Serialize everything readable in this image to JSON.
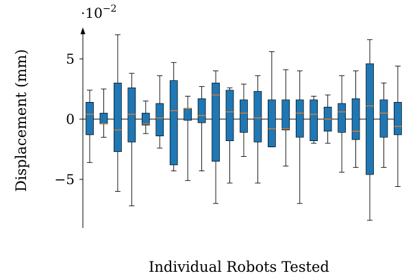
{
  "chart_data": {
    "type": "box",
    "title": "",
    "xlabel": "Individual Robots Tested",
    "ylabel": "Displacement (mm)",
    "y_scale_factor": "·10",
    "y_scale_exponent": "−2",
    "ylim": [
      -9,
      7.5
    ],
    "yticks": [
      {
        "value": 5,
        "label": "5"
      },
      {
        "value": 0,
        "label": "0"
      },
      {
        "value": -5,
        "label": "−5"
      }
    ],
    "grid": false,
    "zero_line": true,
    "box_color": "#1f77b4",
    "median_color": "#ff7f0e",
    "boxes": [
      {
        "whisker_low": -3.6,
        "q1": -1.3,
        "median": 0.4,
        "q3": 1.4,
        "whisker_high": 2.4
      },
      {
        "whisker_low": -1.5,
        "q1": -0.4,
        "median": -0.4,
        "q3": 0.5,
        "whisker_high": 2.5
      },
      {
        "whisker_low": -6.0,
        "q1": -2.7,
        "median": -0.9,
        "q3": 3.0,
        "whisker_high": 7.0
      },
      {
        "whisker_low": -7.2,
        "q1": -1.9,
        "median": 0.4,
        "q3": 2.6,
        "whisker_high": 3.8
      },
      {
        "whisker_low": -1.2,
        "q1": -0.5,
        "median": -0.4,
        "q3": 0.5,
        "whisker_high": 1.5
      },
      {
        "whisker_low": -2.4,
        "q1": -1.4,
        "median": 0.1,
        "q3": 1.3,
        "whisker_high": 3.6
      },
      {
        "whisker_low": -4.3,
        "q1": -3.8,
        "median": 0.7,
        "q3": 3.2,
        "whisker_high": 4.7
      },
      {
        "whisker_low": -5.1,
        "q1": -0.1,
        "median": 0.9,
        "q3": 0.9,
        "whisker_high": 1.9
      },
      {
        "whisker_low": -4.3,
        "q1": -0.3,
        "median": 0.3,
        "q3": 1.7,
        "whisker_high": 2.7
      },
      {
        "whisker_low": -7.0,
        "q1": -3.5,
        "median": 2.0,
        "q3": 3.0,
        "whisker_high": 4.0
      },
      {
        "whisker_low": -5.3,
        "q1": -1.8,
        "median": 0.6,
        "q3": 2.4,
        "whisker_high": 2.6
      },
      {
        "whisker_low": -3.1,
        "q1": -1.1,
        "median": 0.5,
        "q3": 1.6,
        "whisker_high": 2.9
      },
      {
        "whisker_low": -5.3,
        "q1": -1.9,
        "median": 0.1,
        "q3": 2.3,
        "whisker_high": 3.6
      },
      {
        "whisker_low": -2.3,
        "q1": -2.3,
        "median": -0.8,
        "q3": 1.6,
        "whisker_high": 5.6
      },
      {
        "whisker_low": -3.9,
        "q1": -0.9,
        "median": -0.8,
        "q3": 1.6,
        "whisker_high": 4.1
      },
      {
        "whisker_low": -7.0,
        "q1": -1.5,
        "median": 0.5,
        "q3": 1.6,
        "whisker_high": 4.0
      },
      {
        "whisker_low": -2.0,
        "q1": -1.8,
        "median": 0.4,
        "q3": 1.6,
        "whisker_high": 1.9
      },
      {
        "whisker_low": -2.0,
        "q1": -1.0,
        "median": 0.0,
        "q3": 1.0,
        "whisker_high": 2.0
      },
      {
        "whisker_low": -4.4,
        "q1": -1.1,
        "median": 0.6,
        "q3": 1.3,
        "whisker_high": 3.6
      },
      {
        "whisker_low": -4.0,
        "q1": -1.7,
        "median": -1.0,
        "q3": 1.7,
        "whisker_high": 4.0
      },
      {
        "whisker_low": -8.4,
        "q1": -4.6,
        "median": 1.1,
        "q3": 4.6,
        "whisker_high": 6.6
      },
      {
        "whisker_low": -4.0,
        "q1": -1.5,
        "median": 0.5,
        "q3": 1.6,
        "whisker_high": 3.0
      },
      {
        "whisker_low": -5.6,
        "q1": -1.3,
        "median": -0.6,
        "q3": 1.4,
        "whisker_high": 4.4
      }
    ]
  }
}
